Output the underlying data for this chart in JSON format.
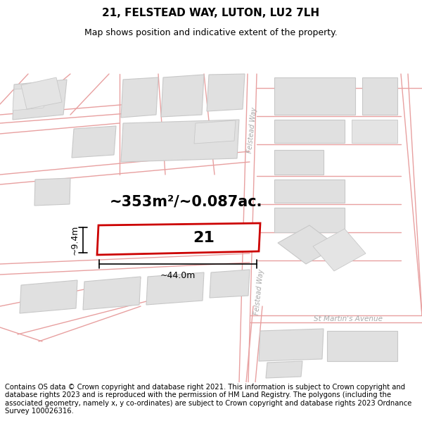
{
  "title": "21, FELSTEAD WAY, LUTON, LU2 7LH",
  "subtitle": "Map shows position and indicative extent of the property.",
  "area_text": "~353m²/~0.087ac.",
  "width_text": "~44.0m",
  "height_text": "~9.4m",
  "number_text": "21",
  "footer_text": "Contains OS data © Crown copyright and database right 2021. This information is subject to Crown copyright and database rights 2023 and is reproduced with the permission of HM Land Registry. The polygons (including the associated geometry, namely x, y co-ordinates) are subject to Crown copyright and database rights 2023 Ordnance Survey 100026316.",
  "bg_color": "#ffffff",
  "plot_line_color": "#cc0000",
  "title_fontsize": 11,
  "subtitle_fontsize": 9,
  "footer_fontsize": 7.2,
  "road_color": "#e8a0a0",
  "building_fill": "#e0e0e0",
  "building_stroke": "#c8c8c8",
  "road_label_color": "#aaaaaa",
  "dim_color": "#000000"
}
